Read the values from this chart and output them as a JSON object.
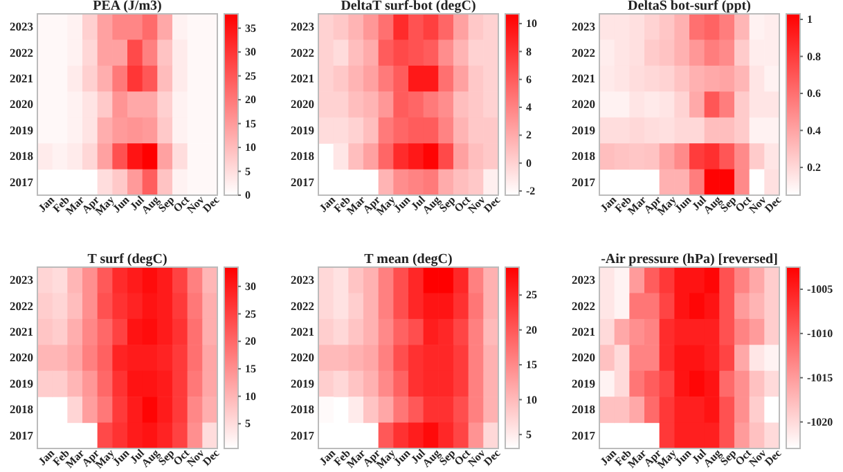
{
  "chart_data": [
    {
      "type": "heatmap",
      "title": "PEA (J/m3)",
      "color": "#ff0000",
      "categories": [
        "Jan",
        "Feb",
        "Mar",
        "Apr",
        "May",
        "Jun",
        "Jul",
        "Aug",
        "Sep",
        "Oct",
        "Nov",
        "Dec"
      ],
      "y_categories": [
        "2023",
        "2022",
        "2021",
        "2020",
        "2019",
        "2018",
        "2017"
      ],
      "cells": [
        [
          1,
          1,
          2,
          7,
          14,
          18,
          18,
          22,
          13,
          2,
          1,
          1
        ],
        [
          1,
          1,
          2,
          6,
          14,
          14,
          27,
          19,
          9,
          3,
          1,
          1
        ],
        [
          1,
          1,
          3,
          7,
          12,
          20,
          30,
          25,
          10,
          3,
          1,
          1
        ],
        [
          1,
          1,
          2,
          4,
          8,
          16,
          13,
          13,
          7,
          2,
          1,
          1
        ],
        [
          1,
          1,
          2,
          4,
          12,
          15,
          16,
          15,
          8,
          2,
          1,
          1
        ],
        [
          3,
          2,
          3,
          6,
          14,
          26,
          35,
          38,
          14,
          5,
          1,
          1
        ],
        [
          null,
          null,
          null,
          null,
          5,
          8,
          15,
          24,
          9,
          2,
          1,
          1
        ]
      ],
      "clim": [
        0,
        38
      ],
      "cticks": [
        0,
        5,
        10,
        15,
        20,
        25,
        30,
        35
      ]
    },
    {
      "type": "heatmap",
      "title": "DeltaT surf-bot (degC)",
      "color": "#ff0000",
      "categories": [
        "Jan",
        "Feb",
        "Mar",
        "Apr",
        "May",
        "Jun",
        "Jul",
        "Aug",
        "Sep",
        "Oct",
        "Nov",
        "Dec"
      ],
      "y_categories": [
        "2023",
        "2022",
        "2021",
        "2020",
        "2019",
        "2018",
        "2017"
      ],
      "cells": [
        [
          0,
          0.5,
          1.5,
          3,
          5,
          8.5,
          6.5,
          7.5,
          5.5,
          2.5,
          0.5,
          0
        ],
        [
          0,
          -0.5,
          1,
          2,
          6,
          7,
          6.5,
          6,
          3.5,
          1.5,
          0,
          0
        ],
        [
          0,
          0.5,
          1.5,
          2.5,
          4.5,
          6,
          9.5,
          9.5,
          5,
          2.5,
          0.5,
          0
        ],
        [
          0,
          0,
          1,
          1.5,
          3,
          6,
          5.5,
          4.5,
          3.5,
          1,
          0.5,
          0
        ],
        [
          -0.5,
          -0.5,
          0,
          1,
          4.5,
          5.5,
          6,
          6,
          4,
          1.5,
          0.5,
          0.5
        ],
        [
          null,
          -1,
          1,
          2.5,
          5.5,
          8.5,
          9.5,
          10.5,
          7,
          2.5,
          1,
          0.5
        ],
        [
          null,
          null,
          null,
          null,
          1.5,
          3.5,
          4,
          4.5,
          2,
          1,
          0.5,
          -1.5
        ]
      ],
      "clim": [
        -2.3,
        10.7
      ],
      "cticks": [
        -2,
        0,
        2,
        4,
        6,
        8,
        10
      ]
    },
    {
      "type": "heatmap",
      "title": "DeltaS bot-surf (ppt)",
      "color": "#ff0000",
      "categories": [
        "Jan",
        "Feb",
        "Mar",
        "Apr",
        "May",
        "Jun",
        "Jul",
        "Aug",
        "Sep",
        "Oct",
        "Nov",
        "Dec"
      ],
      "y_categories": [
        "2023",
        "2022",
        "2021",
        "2020",
        "2019",
        "2018",
        "2017"
      ],
      "cells": [
        [
          0.15,
          0.15,
          0.17,
          0.22,
          0.27,
          0.35,
          0.6,
          0.65,
          0.55,
          0.33,
          0.1,
          0.12
        ],
        [
          0.12,
          0.15,
          0.17,
          0.25,
          0.28,
          0.35,
          0.45,
          0.55,
          0.5,
          0.25,
          0.12,
          0.12
        ],
        [
          0.13,
          0.15,
          0.18,
          0.2,
          0.22,
          0.28,
          0.35,
          0.38,
          0.4,
          0.33,
          0.15,
          0.1
        ],
        [
          0.1,
          0.1,
          0.15,
          0.13,
          0.15,
          0.22,
          0.38,
          0.7,
          0.55,
          0.25,
          0.15,
          0.15
        ],
        [
          0.18,
          0.18,
          0.2,
          0.18,
          0.17,
          0.2,
          0.2,
          0.3,
          0.3,
          0.25,
          0.1,
          0.1
        ],
        [
          0.3,
          0.28,
          0.27,
          0.28,
          0.4,
          0.5,
          0.8,
          0.85,
          0.7,
          0.5,
          0.25,
          0.15
        ],
        [
          null,
          null,
          null,
          null,
          0.35,
          0.35,
          0.55,
          1.02,
          1.02,
          0.5,
          0.05,
          0.17
        ]
      ],
      "clim": [
        0.05,
        1.03
      ],
      "cticks": [
        0.2,
        0.4,
        0.6,
        0.8,
        1
      ]
    },
    {
      "type": "heatmap",
      "title": "T surf (degC)",
      "color": "#ff0000",
      "categories": [
        "Jan",
        "Feb",
        "Mar",
        "Apr",
        "May",
        "Jun",
        "Jul",
        "Aug",
        "Sep",
        "Oct",
        "Nov",
        "Dec"
      ],
      "y_categories": [
        "2023",
        "2022",
        "2021",
        "2020",
        "2019",
        "2018",
        "2017"
      ],
      "cells": [
        [
          6,
          5,
          10,
          15,
          22,
          28,
          30,
          32,
          30,
          25,
          17,
          10
        ],
        [
          7,
          6,
          9,
          15,
          23,
          27,
          29,
          31,
          30,
          26,
          18,
          11
        ],
        [
          8,
          7,
          11,
          16,
          20,
          25,
          31,
          32,
          30,
          27,
          19,
          11
        ],
        [
          10,
          10,
          12,
          17,
          21,
          29,
          30,
          30,
          29,
          26,
          19,
          12
        ],
        [
          7,
          7,
          10,
          14,
          20,
          27,
          31,
          31,
          30,
          26,
          18,
          12
        ],
        [
          null,
          null,
          6,
          13,
          18,
          26,
          30,
          33,
          30,
          26,
          16,
          11
        ],
        [
          null,
          null,
          null,
          null,
          24,
          27,
          30,
          31,
          29,
          25,
          15,
          5
        ]
      ],
      "clim": [
        0.5,
        33.5
      ],
      "cticks": [
        5,
        10,
        15,
        20,
        25,
        30
      ]
    },
    {
      "type": "heatmap",
      "title": "T mean (degC)",
      "color": "#ff0000",
      "categories": [
        "Jan",
        "Feb",
        "Mar",
        "Apr",
        "May",
        "Jun",
        "Jul",
        "Aug",
        "Sep",
        "Oct",
        "Nov",
        "Dec"
      ],
      "y_categories": [
        "2023",
        "2022",
        "2021",
        "2020",
        "2019",
        "2018",
        "2017"
      ],
      "cells": [
        [
          7,
          6,
          9,
          11,
          16,
          21,
          25,
          29,
          29,
          25,
          16,
          11
        ],
        [
          7,
          6,
          8,
          11,
          16,
          21,
          25,
          27,
          27,
          24,
          17,
          11
        ],
        [
          8,
          7,
          9,
          11,
          15,
          19,
          21,
          26,
          25,
          22,
          16,
          10
        ],
        [
          10,
          10,
          11,
          12,
          16,
          21,
          24,
          25,
          25,
          23,
          16,
          11
        ],
        [
          8,
          7,
          9,
          11,
          15,
          19,
          24,
          25,
          25,
          23,
          16,
          11
        ],
        [
          3.5,
          null,
          5,
          9,
          12,
          17,
          20,
          24,
          24,
          21,
          16,
          11
        ],
        [
          null,
          null,
          null,
          null,
          20,
          24,
          26,
          28,
          25,
          22,
          14,
          7
        ]
      ],
      "clim": [
        3,
        29
      ],
      "cticks": [
        5,
        10,
        15,
        20,
        25
      ]
    },
    {
      "type": "heatmap",
      "title": "-Air pressure (hPa)  [reversed]",
      "color": "#ff0000",
      "categories": [
        "Jan",
        "Feb",
        "Mar",
        "Apr",
        "May",
        "Jun",
        "Jul",
        "Aug",
        "Sep",
        "Oct",
        "Nov",
        "Dec"
      ],
      "y_categories": [
        "2023",
        "2022",
        "2021",
        "2020",
        "2019",
        "2018",
        "2017"
      ],
      "cells": [
        [
          -1021,
          -1022,
          -1015,
          -1010,
          -1007,
          -1004,
          -1004,
          -1003,
          -1009,
          -1013,
          -1016,
          -1019
        ],
        [
          -1021,
          -1022,
          -1012,
          -1012,
          -1008,
          -1004,
          -1003,
          -1004,
          -1009,
          -1015,
          -1017,
          -1019
        ],
        [
          -1020,
          -1016,
          -1014,
          -1013,
          -1006,
          -1005,
          -1005,
          -1005,
          -1009,
          -1013,
          -1015,
          -1019
        ],
        [
          -1018,
          -1020,
          -1013,
          -1013,
          -1006,
          -1004,
          -1004,
          -1005,
          -1008,
          -1016,
          -1021,
          -1022
        ],
        [
          -1022,
          -1020,
          -1012,
          -1010,
          -1008,
          -1004,
          -1003,
          -1004,
          -1011,
          -1014,
          -1018,
          -1020
        ],
        [
          -1018,
          -1018,
          -1016,
          -1011,
          -1007,
          -1005,
          -1005,
          -1004,
          -1009,
          -1014,
          -1019,
          -1023
        ],
        [
          null,
          null,
          null,
          null,
          -1007,
          -1005,
          -1005,
          -1005,
          -1009,
          -1015,
          -1018,
          -1020
        ]
      ],
      "clim": [
        -1023,
        -1002.5
      ],
      "cticks": [
        -1020,
        -1015,
        -1010,
        -1005
      ]
    }
  ]
}
